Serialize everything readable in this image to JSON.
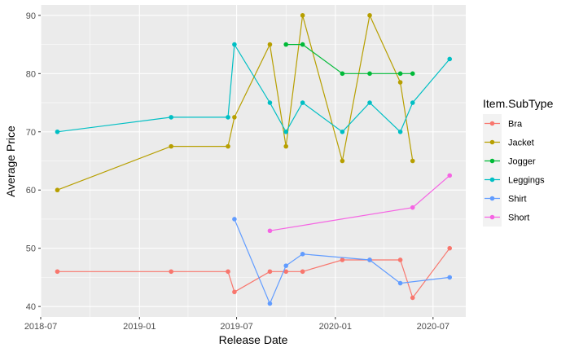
{
  "chart_data": {
    "type": "line",
    "title": "",
    "xlabel": "Release Date",
    "ylabel": "Average Price",
    "x_ticks": [
      "2018-07-01",
      "2019-01-01",
      "2019-07-01",
      "2020-01-01",
      "2020-07-01"
    ],
    "x_tick_labels": [
      "2018-07",
      "2019-01",
      "2019-07",
      "2020-01",
      "2020-07"
    ],
    "xlim": [
      "2018-07-01",
      "2020-08-31"
    ],
    "y_ticks": [
      40,
      50,
      60,
      70,
      80,
      90
    ],
    "y_tick_labels": [
      "40",
      "50",
      "60",
      "70",
      "80",
      "90"
    ],
    "ylim": [
      38.2,
      91.8
    ],
    "grid": true,
    "legend": {
      "title": "Item.SubType",
      "placement": "right"
    },
    "series": [
      {
        "name": "Bra",
        "color": "#F8766D",
        "points": [
          {
            "x": "2018-08-01",
            "y": 46
          },
          {
            "x": "2019-03-01",
            "y": 46
          },
          {
            "x": "2019-06-15",
            "y": 46
          },
          {
            "x": "2019-06-27",
            "y": 42.5
          },
          {
            "x": "2019-09-01",
            "y": 46
          },
          {
            "x": "2019-10-01",
            "y": 46
          },
          {
            "x": "2019-11-01",
            "y": 46
          },
          {
            "x": "2020-01-14",
            "y": 48
          },
          {
            "x": "2020-03-05",
            "y": 48
          },
          {
            "x": "2020-05-01",
            "y": 48
          },
          {
            "x": "2020-05-24",
            "y": 41.5
          },
          {
            "x": "2020-08-01",
            "y": 50
          }
        ]
      },
      {
        "name": "Jacket",
        "color": "#B79F00",
        "points": [
          {
            "x": "2018-08-01",
            "y": 60
          },
          {
            "x": "2019-03-01",
            "y": 67.5
          },
          {
            "x": "2019-06-15",
            "y": 67.5
          },
          {
            "x": "2019-06-27",
            "y": 72.5
          },
          {
            "x": "2019-09-01",
            "y": 85
          },
          {
            "x": "2019-10-01",
            "y": 67.5
          },
          {
            "x": "2019-11-01",
            "y": 90
          },
          {
            "x": "2020-01-14",
            "y": 65
          },
          {
            "x": "2020-03-05",
            "y": 90
          },
          {
            "x": "2020-05-01",
            "y": 78.5
          },
          {
            "x": "2020-05-24",
            "y": 65
          }
        ]
      },
      {
        "name": "Jogger",
        "color": "#00BA38",
        "points": [
          {
            "x": "2019-10-01",
            "y": 85
          },
          {
            "x": "2019-11-01",
            "y": 85
          },
          {
            "x": "2020-01-14",
            "y": 80
          },
          {
            "x": "2020-03-05",
            "y": 80
          },
          {
            "x": "2020-05-01",
            "y": 80
          },
          {
            "x": "2020-05-24",
            "y": 80
          }
        ]
      },
      {
        "name": "Leggings",
        "color": "#00BFC4",
        "points": [
          {
            "x": "2018-08-01",
            "y": 70
          },
          {
            "x": "2019-03-01",
            "y": 72.5
          },
          {
            "x": "2019-06-15",
            "y": 72.5
          },
          {
            "x": "2019-06-27",
            "y": 85
          },
          {
            "x": "2019-09-01",
            "y": 75
          },
          {
            "x": "2019-10-01",
            "y": 70
          },
          {
            "x": "2019-11-01",
            "y": 75
          },
          {
            "x": "2020-01-14",
            "y": 70
          },
          {
            "x": "2020-03-05",
            "y": 75
          },
          {
            "x": "2020-05-01",
            "y": 70
          },
          {
            "x": "2020-05-24",
            "y": 75
          },
          {
            "x": "2020-08-01",
            "y": 82.5
          }
        ]
      },
      {
        "name": "Shirt",
        "color": "#619CFF",
        "points": [
          {
            "x": "2019-06-27",
            "y": 55
          },
          {
            "x": "2019-09-01",
            "y": 40.5
          },
          {
            "x": "2019-10-01",
            "y": 47
          },
          {
            "x": "2019-11-01",
            "y": 49
          },
          {
            "x": "2020-03-05",
            "y": 48
          },
          {
            "x": "2020-05-01",
            "y": 44
          },
          {
            "x": "2020-08-01",
            "y": 45
          }
        ]
      },
      {
        "name": "Short",
        "color": "#F564E3",
        "points": [
          {
            "x": "2019-09-01",
            "y": 53
          },
          {
            "x": "2020-05-24",
            "y": 57
          },
          {
            "x": "2020-08-01",
            "y": 62.5
          }
        ]
      }
    ]
  }
}
